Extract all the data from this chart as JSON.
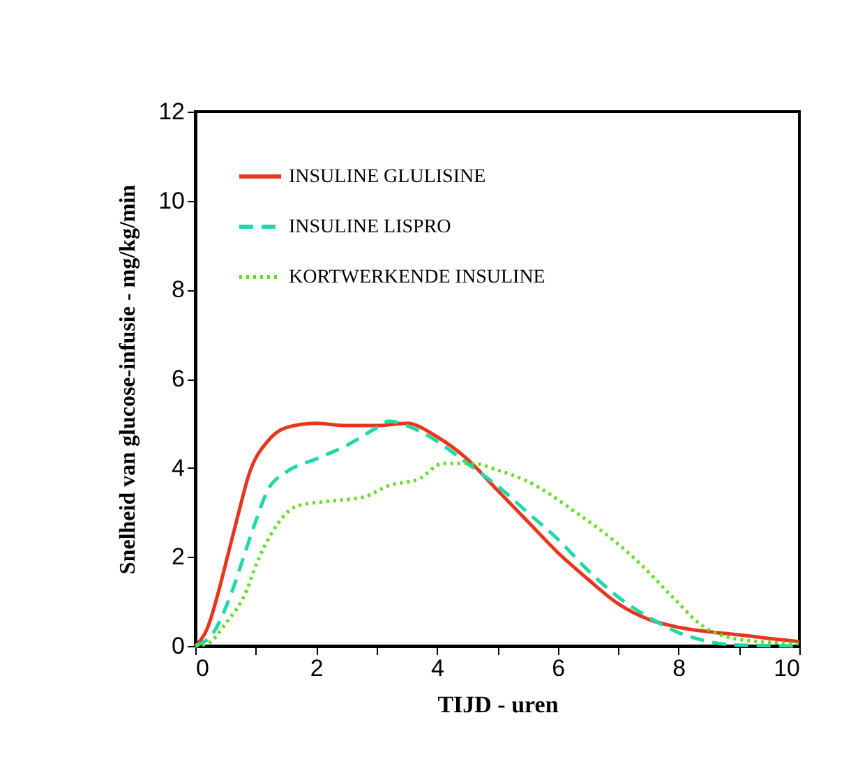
{
  "chart_data": {
    "type": "line",
    "xlabel": "TIJD - uren",
    "ylabel": "Snelheid van glucose-infusie - mg/kg/min",
    "xlim": [
      0,
      10
    ],
    "ylim": [
      0,
      12
    ],
    "xticks": [
      0,
      {
        "value": 1,
        "label": null
      },
      2,
      {
        "value": 3,
        "label": null
      },
      4,
      {
        "value": 5,
        "label": null
      },
      6,
      {
        "value": 7,
        "label": null
      },
      8,
      {
        "value": 9,
        "label": null
      },
      10
    ],
    "yticks": [
      0,
      2,
      4,
      6,
      8,
      10,
      12
    ],
    "grid": false,
    "legend": "top left",
    "marker": "none",
    "series": [
      {
        "name": "INSULINE GLULISINE",
        "color": "#e8361e",
        "line_style": "solid",
        "x": [
          0,
          0.2,
          0.4,
          0.55,
          0.7,
          0.9,
          1.2,
          1.5,
          2,
          2.5,
          3,
          3.5,
          4,
          4.5,
          5,
          5.5,
          6,
          6.5,
          7,
          7.5,
          8,
          8.5,
          9,
          9.5,
          10
        ],
        "values": [
          0,
          0.4,
          1.3,
          2.1,
          2.9,
          3.9,
          4.6,
          4.9,
          5.0,
          4.95,
          4.95,
          5.0,
          4.7,
          4.2,
          3.5,
          2.8,
          2.1,
          1.5,
          0.95,
          0.6,
          0.42,
          0.32,
          0.25,
          0.17,
          0.1
        ]
      },
      {
        "name": "INSULINE LISPRO",
        "color": "#1fd9a8",
        "line_style": "dashed",
        "x": [
          0,
          0.3,
          0.6,
          0.8,
          1,
          1.2,
          1.5,
          2,
          2.5,
          3,
          3.2,
          3.5,
          4,
          4.5,
          5,
          5.5,
          6,
          6.5,
          7,
          7.5,
          8,
          8.5,
          9,
          10
        ],
        "values": [
          0,
          0.3,
          1.2,
          2.0,
          2.8,
          3.5,
          3.9,
          4.2,
          4.5,
          4.9,
          5.05,
          4.95,
          4.6,
          4.1,
          3.6,
          3.0,
          2.4,
          1.7,
          1.1,
          0.65,
          0.3,
          0.1,
          0.02,
          0
        ]
      },
      {
        "name": "KORTWERKENDE INSULINE",
        "color": "#66dd22",
        "line_style": "dotted",
        "x": [
          0,
          0.2,
          0.5,
          0.85,
          1.0,
          1.25,
          1.7,
          2.2,
          2.8,
          3.2,
          3.7,
          4.1,
          4.6,
          5,
          5.5,
          6.3,
          6.9,
          7.4,
          7.9,
          8.4,
          9,
          10
        ],
        "values": [
          0,
          0.05,
          0.5,
          1.25,
          1.8,
          2.5,
          3.15,
          3.25,
          3.35,
          3.6,
          3.75,
          4.1,
          4.1,
          3.95,
          3.7,
          3.0,
          2.4,
          1.8,
          1.1,
          0.45,
          0.15,
          0.05
        ]
      }
    ]
  }
}
